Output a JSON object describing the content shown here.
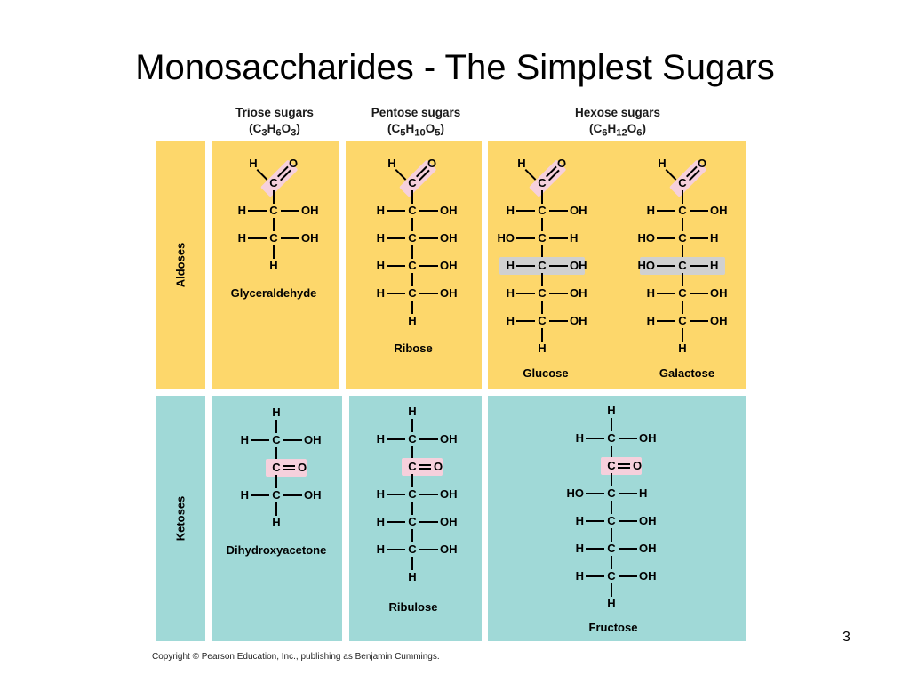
{
  "title": "Monosaccharides - The Simplest Sugars",
  "columns": [
    {
      "line1": "Triose sugars",
      "c": "C",
      "n1": "3",
      "h": "H",
      "n2": "6",
      "o": "O",
      "n3": "3"
    },
    {
      "line1": "Pentose sugars",
      "c": "C",
      "n1": "5",
      "h": "H",
      "n2": "10",
      "o": "O",
      "n3": "5"
    },
    {
      "line1": "Hexose sugars",
      "c": "C",
      "n1": "6",
      "h": "H",
      "n2": "12",
      "o": "O",
      "n3": "6"
    }
  ],
  "rows": {
    "aldoses": "Aldoses",
    "ketoses": "Ketoses"
  },
  "sugars": {
    "glyceraldehyde": "Glyceraldehyde",
    "ribose": "Ribose",
    "glucose": "Glucose",
    "galactose": "Galactose",
    "dihydroxyacetone": "Dihydroxyacetone",
    "ribulose": "Ribulose",
    "fructose": "Fructose"
  },
  "atoms": {
    "H": "H",
    "C": "C",
    "O": "O",
    "OH": "OH",
    "HO": "HO"
  },
  "copyright": "Copyright © Pearson Education, Inc., publishing as Benjamin Cummings.",
  "page_number": "3",
  "colors": {
    "aldose_panel": "#fdd76b",
    "ketose_panel": "#a0d9d7",
    "carbonyl_highlight": "#f6d0dc",
    "isomer_highlight": "#d0d0d0"
  }
}
